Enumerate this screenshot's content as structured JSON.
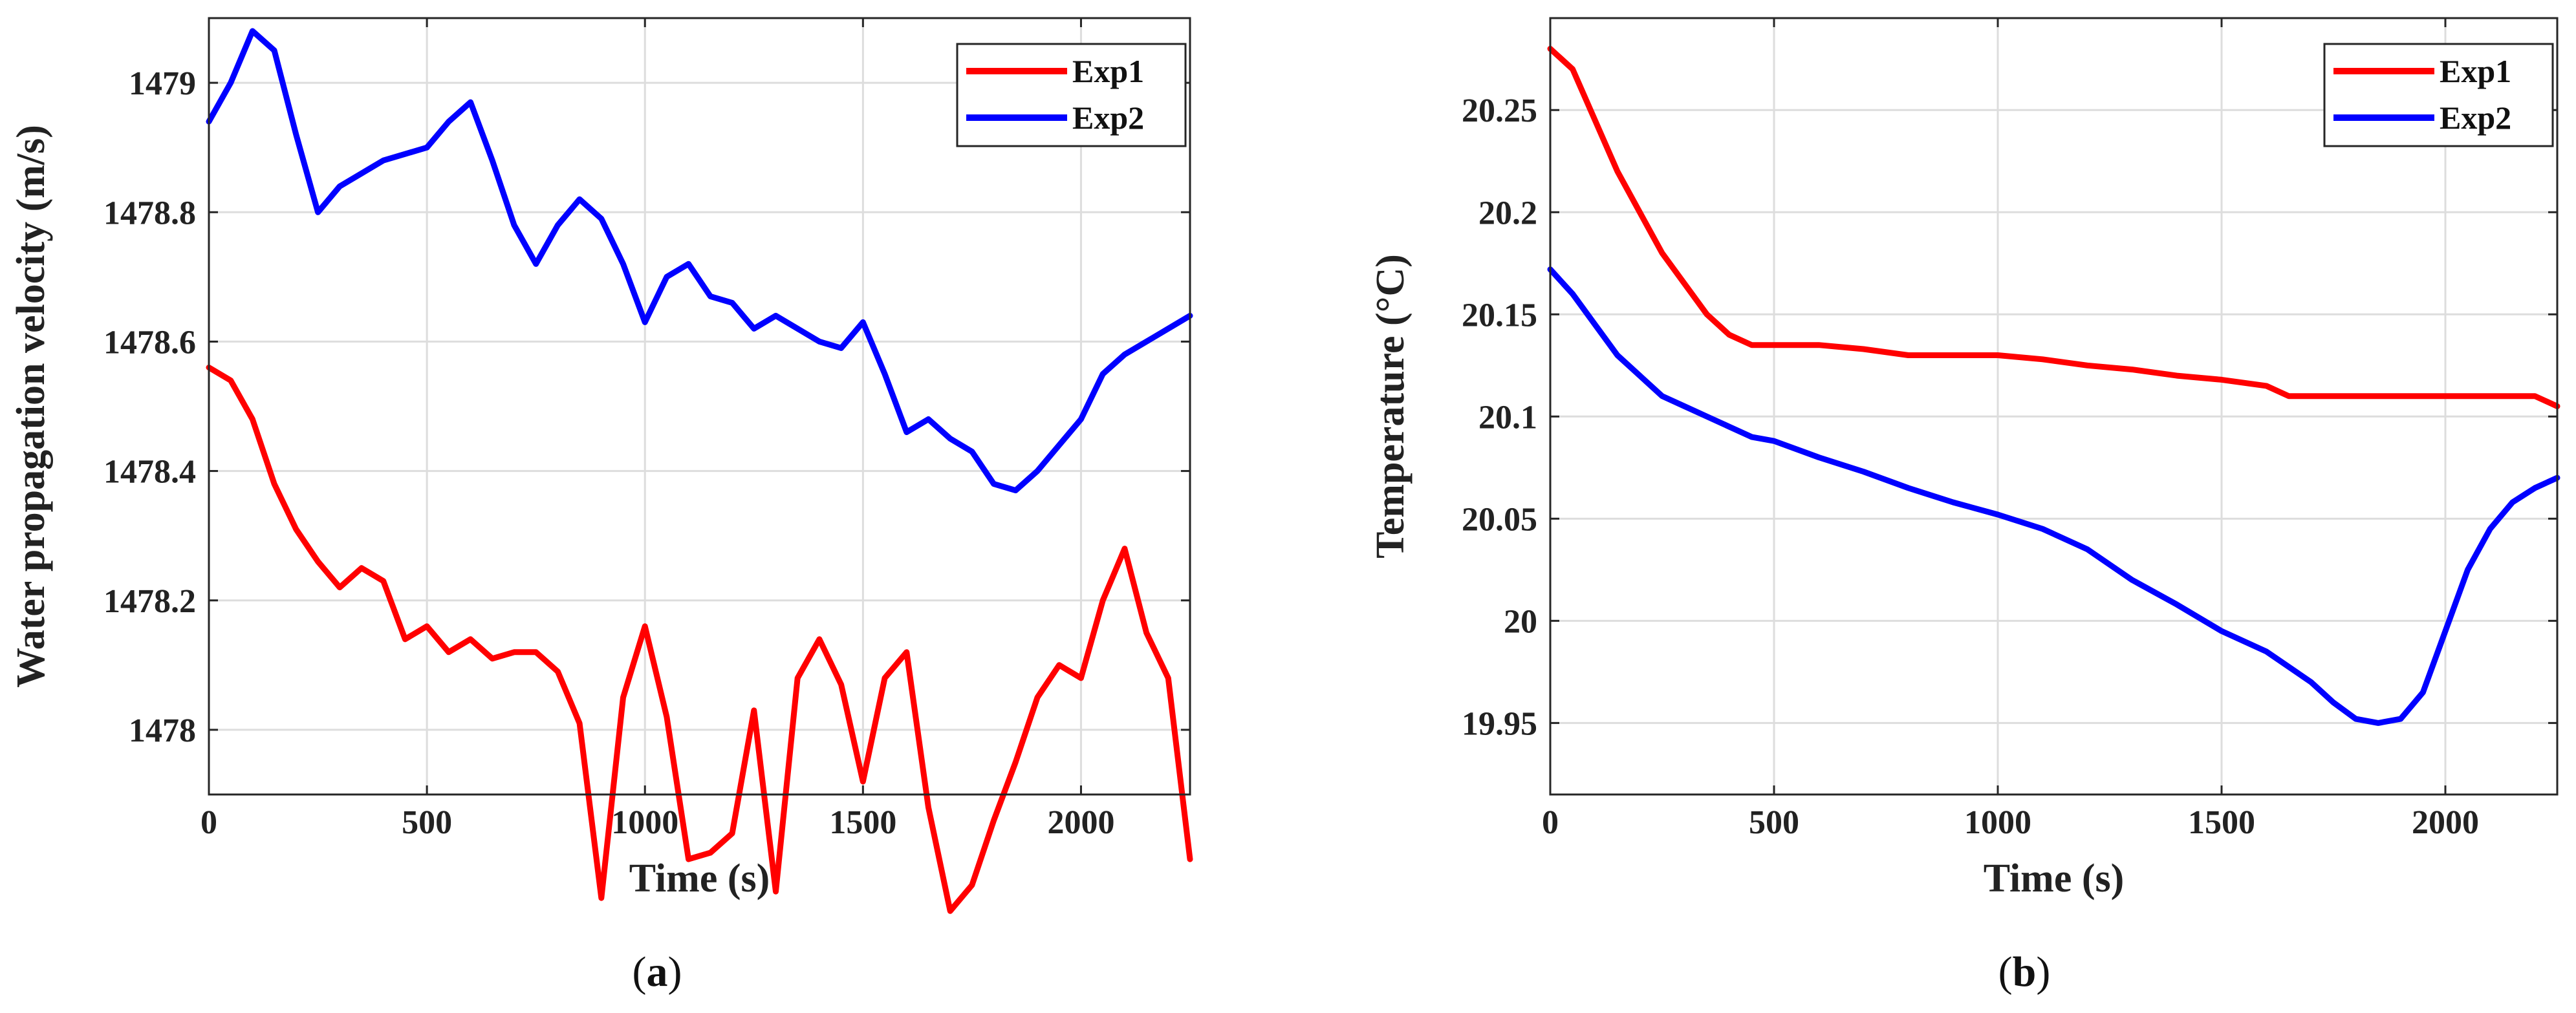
{
  "chart_data": [
    {
      "type": "line",
      "panel_label": "a",
      "xlabel": "Time (s)",
      "ylabel": "Water propagation velocity (m/s)",
      "xlim": [
        0,
        2250
      ],
      "ylim": [
        1477.9,
        1479.1
      ],
      "xticks": [
        0,
        500,
        1000,
        1500,
        2000
      ],
      "yticks": [
        1478,
        1478.2,
        1478.4,
        1478.6,
        1478.8,
        1479
      ],
      "ytick_labels": [
        "1478",
        "1478.2",
        "1478.4",
        "1478.6",
        "1478.8",
        "1479"
      ],
      "grid": true,
      "legend": "top-right",
      "series": [
        {
          "name": "Exp1",
          "color": "#ff0000",
          "x": [
            0,
            50,
            100,
            150,
            200,
            250,
            300,
            350,
            400,
            450,
            500,
            550,
            600,
            650,
            700,
            750,
            800,
            850,
            900,
            950,
            1000,
            1050,
            1100,
            1150,
            1200,
            1250,
            1300,
            1350,
            1400,
            1450,
            1500,
            1550,
            1600,
            1650,
            1700,
            1750,
            1800,
            1850,
            1900,
            1950,
            2000,
            2050,
            2100,
            2150,
            2200,
            2250
          ],
          "y": [
            1478.56,
            1478.54,
            1478.48,
            1478.38,
            1478.31,
            1478.26,
            1478.22,
            1478.25,
            1478.23,
            1478.14,
            1478.16,
            1478.12,
            1478.14,
            1478.11,
            1478.12,
            1478.12,
            1478.09,
            1478.01,
            1477.74,
            1478.05,
            1478.16,
            1478.02,
            1477.8,
            1477.81,
            1477.84,
            1478.03,
            1477.75,
            1478.08,
            1478.14,
            1478.07,
            1477.92,
            1478.08,
            1478.12,
            1477.88,
            1477.72,
            1477.76,
            1477.86,
            1477.95,
            1478.05,
            1478.1,
            1478.08,
            1478.2,
            1478.28,
            1478.15,
            1478.08,
            1477.8
          ]
        },
        {
          "name": "Exp2",
          "color": "#0000ff",
          "x": [
            0,
            50,
            100,
            150,
            200,
            250,
            300,
            350,
            400,
            450,
            500,
            550,
            600,
            650,
            700,
            750,
            800,
            850,
            900,
            950,
            1000,
            1050,
            1100,
            1150,
            1200,
            1250,
            1300,
            1350,
            1400,
            1450,
            1500,
            1550,
            1600,
            1650,
            1700,
            1750,
            1800,
            1850,
            1900,
            1950,
            2000,
            2050,
            2100,
            2150,
            2200,
            2250
          ],
          "y": [
            1478.94,
            1479.0,
            1479.08,
            1479.05,
            1478.92,
            1478.8,
            1478.84,
            1478.86,
            1478.88,
            1478.89,
            1478.9,
            1478.94,
            1478.97,
            1478.88,
            1478.78,
            1478.72,
            1478.78,
            1478.82,
            1478.79,
            1478.72,
            1478.63,
            1478.7,
            1478.72,
            1478.67,
            1478.66,
            1478.62,
            1478.64,
            1478.62,
            1478.6,
            1478.59,
            1478.63,
            1478.55,
            1478.46,
            1478.48,
            1478.45,
            1478.43,
            1478.38,
            1478.37,
            1478.4,
            1478.44,
            1478.48,
            1478.55,
            1478.58,
            1478.6,
            1478.62,
            1478.64
          ]
        }
      ]
    },
    {
      "type": "line",
      "panel_label": "b",
      "xlabel": "Time (s)",
      "ylabel": "Temperature (°C)",
      "xlim": [
        0,
        2250
      ],
      "ylim": [
        19.915,
        20.295
      ],
      "xticks": [
        0,
        500,
        1000,
        1500,
        2000
      ],
      "yticks": [
        19.95,
        20,
        20.05,
        20.1,
        20.15,
        20.2,
        20.25
      ],
      "ytick_labels": [
        "19.95",
        "20",
        "20.05",
        "20.1",
        "20.15",
        "20.2",
        "20.25"
      ],
      "grid": true,
      "legend": "top-right",
      "series": [
        {
          "name": "Exp1",
          "color": "#ff0000",
          "x": [
            0,
            50,
            100,
            150,
            200,
            250,
            300,
            350,
            400,
            450,
            500,
            600,
            700,
            800,
            900,
            1000,
            1100,
            1200,
            1300,
            1400,
            1500,
            1600,
            1650,
            1700,
            1800,
            1900,
            2000,
            2100,
            2200,
            2250
          ],
          "y": [
            20.28,
            20.27,
            20.245,
            20.22,
            20.2,
            20.18,
            20.165,
            20.15,
            20.14,
            20.135,
            20.135,
            20.135,
            20.133,
            20.13,
            20.13,
            20.13,
            20.128,
            20.125,
            20.123,
            20.12,
            20.118,
            20.115,
            20.11,
            20.11,
            20.11,
            20.11,
            20.11,
            20.11,
            20.11,
            20.105
          ]
        },
        {
          "name": "Exp2",
          "color": "#0000ff",
          "x": [
            0,
            50,
            100,
            150,
            200,
            250,
            300,
            350,
            400,
            450,
            500,
            600,
            700,
            800,
            900,
            1000,
            1100,
            1200,
            1300,
            1400,
            1500,
            1600,
            1700,
            1750,
            1800,
            1850,
            1900,
            1950,
            2000,
            2050,
            2100,
            2150,
            2200,
            2250
          ],
          "y": [
            20.172,
            20.16,
            20.145,
            20.13,
            20.12,
            20.11,
            20.105,
            20.1,
            20.095,
            20.09,
            20.088,
            20.08,
            20.073,
            20.065,
            20.058,
            20.052,
            20.045,
            20.035,
            20.02,
            20.008,
            19.995,
            19.985,
            19.97,
            19.96,
            19.952,
            19.95,
            19.952,
            19.965,
            19.995,
            20.025,
            20.045,
            20.058,
            20.065,
            20.07
          ]
        }
      ]
    }
  ]
}
